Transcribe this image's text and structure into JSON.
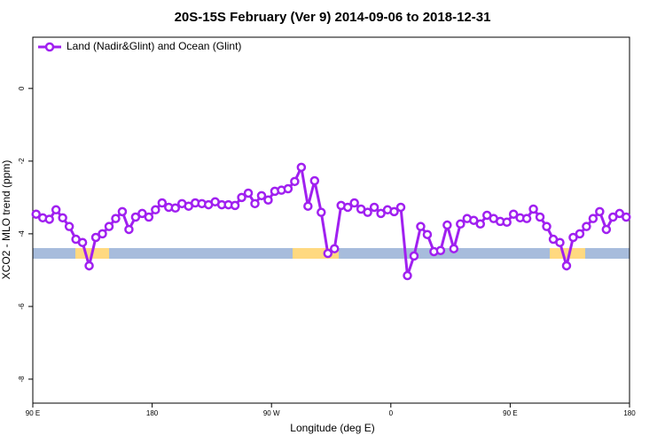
{
  "chart_data": {
    "type": "line",
    "title": "20S-15S February (Ver 9)   2014-09-06 to 2018-12-31",
    "xlabel": "Longitude (deg E)",
    "ylabel": "XCO2 - MLO trend (ppm)",
    "xlim": [
      90,
      540
    ],
    "ylim": [
      -8.66,
      1.41
    ],
    "xticks": [
      {
        "value": 90,
        "label": "90 E"
      },
      180,
      {
        "value": 270,
        "label": "90 W"
      },
      {
        "value": 360,
        "label": "0"
      },
      {
        "value": 450,
        "label": "90 E"
      },
      {
        "value": 540,
        "label": "180"
      }
    ],
    "yticks": [
      -8,
      -6,
      -4,
      -2,
      0
    ],
    "legend": "top-left",
    "x": [
      92.5,
      97.5,
      102.5,
      107.5,
      112.5,
      117.5,
      122.5,
      127.5,
      132.5,
      137.5,
      142.5,
      147.5,
      152.5,
      157.5,
      162.5,
      167.5,
      172.5,
      177.5,
      182.5,
      187.5,
      192.5,
      197.5,
      202.5,
      207.5,
      212.5,
      217.5,
      222.5,
      227.5,
      232.5,
      237.5,
      242.5,
      247.5,
      252.5,
      257.5,
      262.5,
      267.5,
      272.5,
      277.5,
      282.5,
      287.5,
      292.5,
      297.5,
      302.5,
      307.5,
      312.5,
      317.5,
      322.5,
      327.5,
      332.5,
      337.5,
      342.5,
      347.5,
      352.5,
      357.5,
      362.5,
      367.5,
      372.5,
      377.5,
      382.5,
      387.5,
      392.5,
      397.5,
      402.5,
      407.5,
      412.5,
      417.5,
      422.5,
      427.5,
      432.5,
      437.5,
      442.5,
      447.5,
      452.5,
      457.5,
      462.5,
      467.5,
      472.5,
      477.5,
      482.5,
      487.5,
      492.5,
      497.5,
      502.5,
      507.5,
      512.5,
      517.5,
      522.5,
      527.5,
      532.5,
      537.5
    ],
    "series": [
      {
        "name": "Land (Nadir&Glint) and Ocean (Glint)",
        "color": "#a020f0",
        "values": [
          -3.46,
          -3.56,
          -3.6,
          -3.34,
          -3.56,
          -3.8,
          -4.15,
          -4.24,
          -4.88,
          -4.1,
          -4.0,
          -3.8,
          -3.58,
          -3.39,
          -3.88,
          -3.54,
          -3.44,
          -3.54,
          -3.34,
          -3.15,
          -3.27,
          -3.29,
          -3.17,
          -3.24,
          -3.15,
          -3.17,
          -3.2,
          -3.12,
          -3.2,
          -3.2,
          -3.22,
          -3.0,
          -2.88,
          -3.17,
          -2.95,
          -3.07,
          -2.83,
          -2.8,
          -2.76,
          -2.56,
          -2.17,
          -3.24,
          -2.54,
          -3.41,
          -4.54,
          -4.41,
          -3.22,
          -3.27,
          -3.15,
          -3.32,
          -3.41,
          -3.27,
          -3.44,
          -3.34,
          -3.39,
          -3.27,
          -5.15,
          -4.61,
          -3.8,
          -4.02,
          -4.49,
          -4.46,
          -3.76,
          -4.41,
          -3.73,
          -3.58,
          -3.63,
          -3.73,
          -3.49,
          -3.58,
          -3.66,
          -3.68,
          -3.46,
          -3.56,
          -3.58,
          -3.32,
          -3.54,
          -3.8,
          -4.15,
          -4.24,
          -4.88,
          -4.1,
          -4.0,
          -3.8,
          -3.58,
          -3.39,
          -3.88,
          -3.54,
          -3.44,
          -3.54
        ]
      }
    ]
  }
}
